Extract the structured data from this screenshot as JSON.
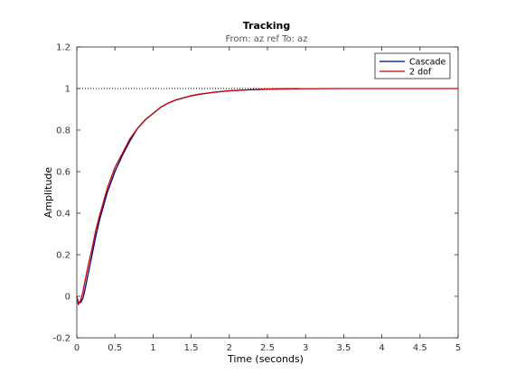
{
  "chart_data": {
    "type": "line",
    "title": "Tracking",
    "subtitle": "From: az ref  To: az",
    "xlabel": "Time (seconds)",
    "ylabel": "Amplitude",
    "xlim": [
      0,
      5
    ],
    "ylim": [
      -0.2,
      1.2
    ],
    "xticks": [
      "0",
      "0.5",
      "1",
      "1.5",
      "2",
      "2.5",
      "3",
      "3.5",
      "4",
      "4.5",
      "5"
    ],
    "yticks": [
      "-0.2",
      "0",
      "0.2",
      "0.4",
      "0.6",
      "0.8",
      "1",
      "1.2"
    ],
    "grid": false,
    "reference_level": 1,
    "legend": {
      "position": "top-right"
    },
    "series": [
      {
        "name": "Cascade",
        "color": "#00008b",
        "x": [
          0,
          0.02,
          0.05,
          0.08,
          0.1,
          0.15,
          0.2,
          0.25,
          0.3,
          0.4,
          0.5,
          0.6,
          0.7,
          0.8,
          0.9,
          1.0,
          1.1,
          1.2,
          1.3,
          1.4,
          1.5,
          1.6,
          1.7,
          1.8,
          1.9,
          2.0,
          2.2,
          2.4,
          2.6,
          2.8,
          2.9
        ],
        "y": [
          0,
          -0.03,
          -0.03,
          -0.01,
          0.02,
          0.11,
          0.2,
          0.29,
          0.37,
          0.5,
          0.6,
          0.68,
          0.75,
          0.81,
          0.85,
          0.88,
          0.91,
          0.93,
          0.945,
          0.955,
          0.965,
          0.972,
          0.977,
          0.982,
          0.986,
          0.989,
          0.993,
          0.996,
          0.998,
          0.999,
          1.0
        ]
      },
      {
        "name": "2 dof",
        "color": "#cc0000",
        "x": [
          0,
          0.02,
          0.05,
          0.08,
          0.1,
          0.15,
          0.2,
          0.25,
          0.3,
          0.4,
          0.5,
          0.6,
          0.7,
          0.8,
          0.9,
          1.0,
          1.1,
          1.2,
          1.3,
          1.4,
          1.5,
          1.6,
          1.8,
          2.0,
          2.2,
          2.5,
          3.0,
          3.5,
          4.0,
          5.0
        ],
        "y": [
          0,
          -0.04,
          -0.02,
          0.02,
          0.06,
          0.15,
          0.23,
          0.32,
          0.39,
          0.52,
          0.62,
          0.69,
          0.76,
          0.81,
          0.85,
          0.88,
          0.91,
          0.93,
          0.945,
          0.955,
          0.965,
          0.972,
          0.982,
          0.989,
          0.993,
          0.997,
          0.999,
          1.0,
          1.0,
          1.0
        ]
      }
    ]
  }
}
